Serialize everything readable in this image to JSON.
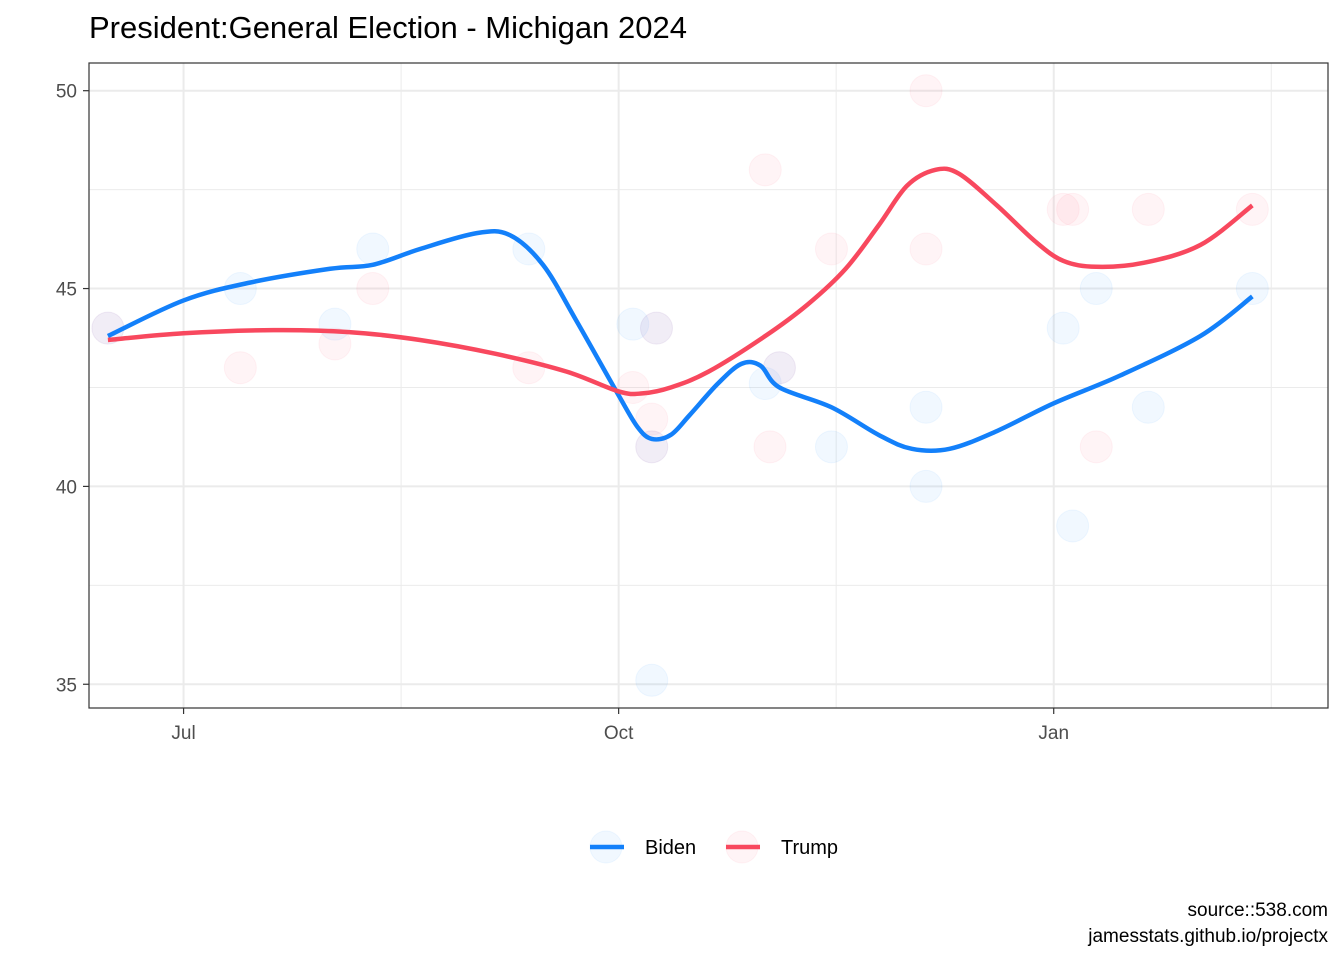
{
  "chart_data": {
    "type": "line",
    "title": "President:General Election - Michigan 2024",
    "xlabel": "",
    "ylabel": "",
    "x_ticks": [
      {
        "label": "Jul",
        "date": "2023-07-01"
      },
      {
        "label": "Oct",
        "date": "2023-10-01"
      },
      {
        "label": "Jan",
        "date": "2024-01-01"
      }
    ],
    "xlim": [
      "2023-06-11",
      "2024-02-28"
    ],
    "y_ticks": [
      35,
      40,
      45,
      50
    ],
    "ylim": [
      34.4,
      50.7
    ],
    "grid": true,
    "legend_position": "bottom",
    "series": [
      {
        "name": "Biden",
        "color": "#1380FA",
        "polls": [
          {
            "x": "2023-06-15",
            "y": 44
          },
          {
            "x": "2023-07-13",
            "y": 45
          },
          {
            "x": "2023-08-02",
            "y": 44.1
          },
          {
            "x": "2023-08-10",
            "y": 46
          },
          {
            "x": "2023-09-12",
            "y": 46
          },
          {
            "x": "2023-10-04",
            "y": 44.1
          },
          {
            "x": "2023-10-08",
            "y": 35.1
          },
          {
            "x": "2023-10-08",
            "y": 41
          },
          {
            "x": "2023-10-09",
            "y": 44
          },
          {
            "x": "2023-11-01",
            "y": 42.6
          },
          {
            "x": "2023-11-04",
            "y": 43
          },
          {
            "x": "2023-11-15",
            "y": 41
          },
          {
            "x": "2023-12-05",
            "y": 42
          },
          {
            "x": "2023-12-05",
            "y": 40
          },
          {
            "x": "2024-01-03",
            "y": 44
          },
          {
            "x": "2024-01-05",
            "y": 39
          },
          {
            "x": "2024-01-10",
            "y": 45
          },
          {
            "x": "2024-01-21",
            "y": 42
          },
          {
            "x": "2024-02-12",
            "y": 45
          }
        ],
        "trend": [
          {
            "x": "2023-06-15",
            "y": 43.8
          },
          {
            "x": "2023-07-01",
            "y": 44.7
          },
          {
            "x": "2023-07-15",
            "y": 45.15
          },
          {
            "x": "2023-08-01",
            "y": 45.5
          },
          {
            "x": "2023-08-10",
            "y": 45.6
          },
          {
            "x": "2023-08-20",
            "y": 46.0
          },
          {
            "x": "2023-09-01",
            "y": 46.4
          },
          {
            "x": "2023-09-08",
            "y": 46.35
          },
          {
            "x": "2023-09-15",
            "y": 45.6
          },
          {
            "x": "2023-09-22",
            "y": 44.2
          },
          {
            "x": "2023-10-01",
            "y": 42.3
          },
          {
            "x": "2023-10-05",
            "y": 41.5
          },
          {
            "x": "2023-10-08",
            "y": 41.2
          },
          {
            "x": "2023-10-12",
            "y": 41.3
          },
          {
            "x": "2023-10-16",
            "y": 41.8
          },
          {
            "x": "2023-10-22",
            "y": 42.6
          },
          {
            "x": "2023-10-27",
            "y": 43.1
          },
          {
            "x": "2023-10-31",
            "y": 43.05
          },
          {
            "x": "2023-11-04",
            "y": 42.5
          },
          {
            "x": "2023-11-15",
            "y": 42.0
          },
          {
            "x": "2023-11-25",
            "y": 41.3
          },
          {
            "x": "2023-12-02",
            "y": 40.95
          },
          {
            "x": "2023-12-10",
            "y": 40.95
          },
          {
            "x": "2023-12-20",
            "y": 41.4
          },
          {
            "x": "2024-01-01",
            "y": 42.1
          },
          {
            "x": "2024-01-15",
            "y": 42.8
          },
          {
            "x": "2024-02-01",
            "y": 43.8
          },
          {
            "x": "2024-02-12",
            "y": 44.8
          }
        ]
      },
      {
        "name": "Trump",
        "color": "#F8485E",
        "polls": [
          {
            "x": "2023-06-15",
            "y": 44
          },
          {
            "x": "2023-07-13",
            "y": 43
          },
          {
            "x": "2023-08-02",
            "y": 43.6
          },
          {
            "x": "2023-08-10",
            "y": 45
          },
          {
            "x": "2023-09-12",
            "y": 43
          },
          {
            "x": "2023-10-04",
            "y": 42.5
          },
          {
            "x": "2023-10-08",
            "y": 41.7
          },
          {
            "x": "2023-10-08",
            "y": 41
          },
          {
            "x": "2023-10-09",
            "y": 44
          },
          {
            "x": "2023-11-01",
            "y": 48
          },
          {
            "x": "2023-11-02",
            "y": 41
          },
          {
            "x": "2023-11-04",
            "y": 43
          },
          {
            "x": "2023-11-15",
            "y": 46
          },
          {
            "x": "2023-12-05",
            "y": 50
          },
          {
            "x": "2023-12-05",
            "y": 46
          },
          {
            "x": "2024-01-03",
            "y": 47
          },
          {
            "x": "2024-01-05",
            "y": 47
          },
          {
            "x": "2024-01-10",
            "y": 41
          },
          {
            "x": "2024-01-21",
            "y": 47
          },
          {
            "x": "2024-02-12",
            "y": 47
          }
        ],
        "trend": [
          {
            "x": "2023-06-15",
            "y": 43.7
          },
          {
            "x": "2023-07-01",
            "y": 43.87
          },
          {
            "x": "2023-07-20",
            "y": 43.95
          },
          {
            "x": "2023-08-05",
            "y": 43.9
          },
          {
            "x": "2023-08-20",
            "y": 43.7
          },
          {
            "x": "2023-09-05",
            "y": 43.35
          },
          {
            "x": "2023-09-20",
            "y": 42.9
          },
          {
            "x": "2023-10-01",
            "y": 42.4
          },
          {
            "x": "2023-10-06",
            "y": 42.35
          },
          {
            "x": "2023-10-12",
            "y": 42.5
          },
          {
            "x": "2023-10-20",
            "y": 42.9
          },
          {
            "x": "2023-11-01",
            "y": 43.8
          },
          {
            "x": "2023-11-10",
            "y": 44.6
          },
          {
            "x": "2023-11-18",
            "y": 45.5
          },
          {
            "x": "2023-11-25",
            "y": 46.6
          },
          {
            "x": "2023-12-01",
            "y": 47.6
          },
          {
            "x": "2023-12-07",
            "y": 48.0
          },
          {
            "x": "2023-12-12",
            "y": 47.9
          },
          {
            "x": "2023-12-20",
            "y": 47.1
          },
          {
            "x": "2023-12-28",
            "y": 46.2
          },
          {
            "x": "2024-01-03",
            "y": 45.7
          },
          {
            "x": "2024-01-10",
            "y": 45.55
          },
          {
            "x": "2024-01-20",
            "y": 45.65
          },
          {
            "x": "2024-02-01",
            "y": 46.1
          },
          {
            "x": "2024-02-12",
            "y": 47.1
          }
        ]
      }
    ]
  },
  "caption": {
    "line1": "source::538.com",
    "line2": "jamesstats.github.io/projectx"
  }
}
